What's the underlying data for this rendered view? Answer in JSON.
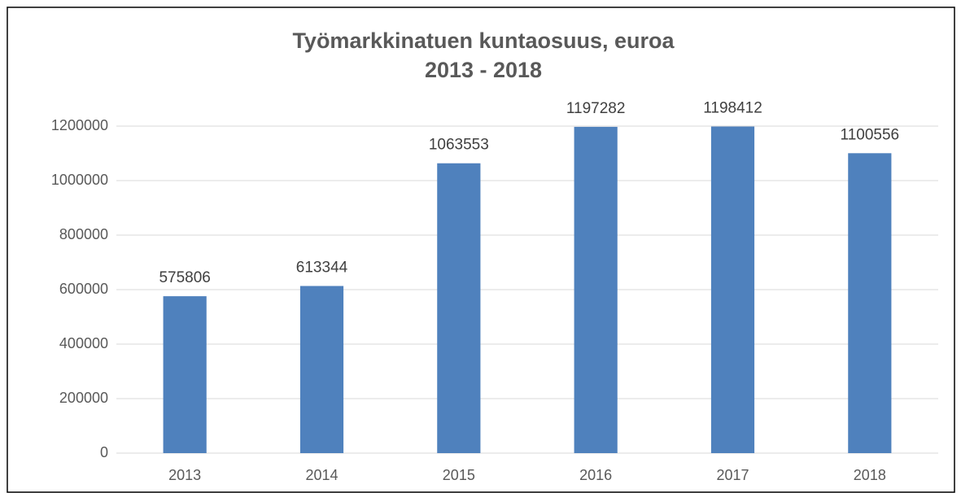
{
  "chart_data": {
    "type": "bar",
    "title": [
      "Työmarkkinatuen kuntaosuus, euroa",
      "2013 - 2018"
    ],
    "categories": [
      "2013",
      "2014",
      "2015",
      "2016",
      "2017",
      "2018"
    ],
    "values": [
      575806,
      613344,
      1063553,
      1197282,
      1198412,
      1100556
    ],
    "color": "#4f81bd",
    "ylim": [
      0,
      1200000
    ],
    "yticks": [
      0,
      200000,
      400000,
      600000,
      800000,
      1000000,
      1200000
    ],
    "grid": true
  }
}
